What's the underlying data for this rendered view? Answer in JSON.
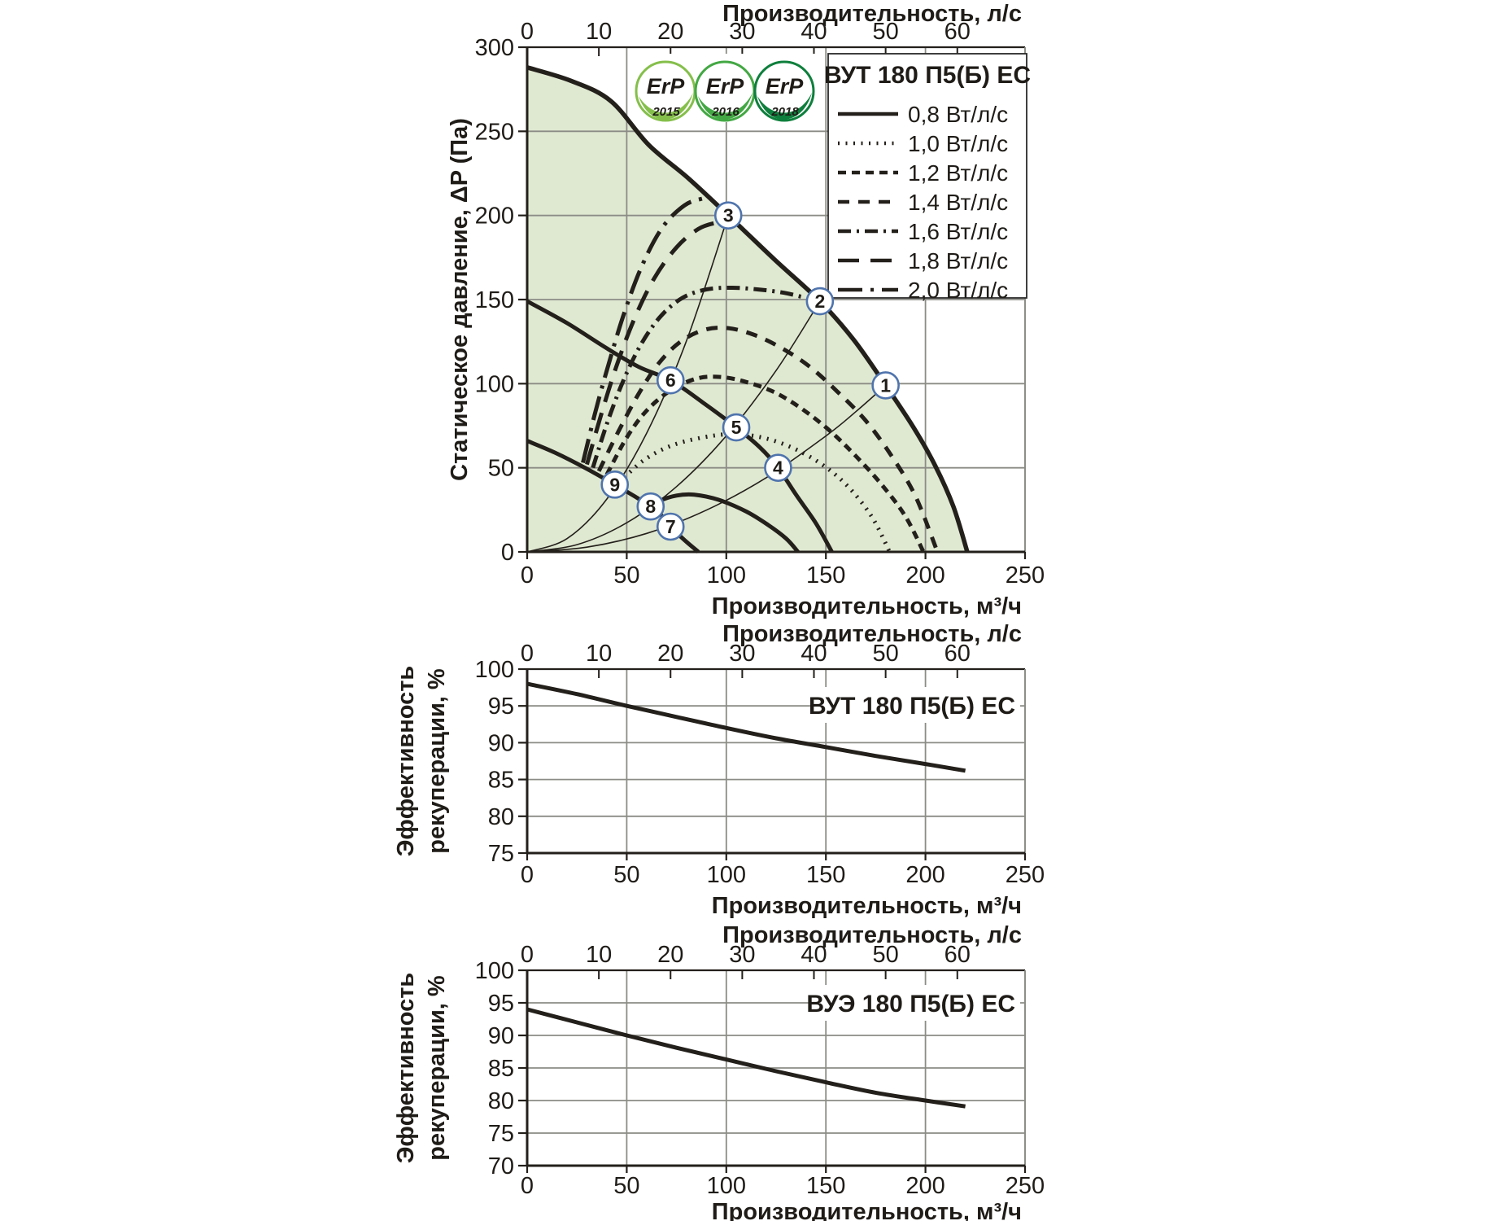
{
  "colors": {
    "ink": "#231f1a",
    "grid": "#8c8c86",
    "region": "#dfe8d1",
    "marker_ring": "#4f74ad",
    "text": "#1f1c18",
    "background": "#ffffff"
  },
  "chart_data": [
    {
      "type": "line",
      "name": "fan-performance-chart",
      "title": "ВУТ 180 П5(Б) ЕС",
      "x_axis_bottom": {
        "label": "Производительность, м³/ч",
        "ticks": [
          0,
          50,
          100,
          150,
          200,
          250
        ],
        "range": [
          0,
          250
        ]
      },
      "x_axis_top": {
        "label": "Производительность, л/с",
        "ticks": [
          0,
          10,
          20,
          30,
          40,
          50,
          60
        ],
        "range": [
          0,
          60
        ],
        "m3h_per_lps": 3.6
      },
      "y_axis": {
        "label_lines": [
          "Статическое давление, ΔP (Па)"
        ],
        "ticks": [
          0,
          50,
          100,
          150,
          200,
          250,
          300
        ],
        "range": [
          0,
          300
        ]
      },
      "grid": true,
      "region_fill": "#dfe8d1",
      "erp_badges": [
        {
          "text": "ErP",
          "year": "2015",
          "color": "#85bf4b"
        },
        {
          "text": "ErP",
          "year": "2016",
          "color": "#43a843"
        },
        {
          "text": "ErP",
          "year": "2018",
          "color": "#0e7f3c"
        }
      ],
      "legend": {
        "title": "ВУТ 180 П5(Б) ЕС",
        "position": "top-right",
        "items": [
          {
            "label": "0,8 Вт/л/с",
            "style": "solid"
          },
          {
            "label": "1,0 Вт/л/с",
            "style": "dotted"
          },
          {
            "label": "1,2 Вт/л/с",
            "style": "dash-fine"
          },
          {
            "label": "1,4 Вт/л/с",
            "style": "dash"
          },
          {
            "label": "1,6 Вт/л/с",
            "style": "dash-dot"
          },
          {
            "label": "1,8 Вт/л/с",
            "style": "long-dash"
          },
          {
            "label": "2,0 Вт/л/с",
            "style": "long-dash-dot"
          }
        ]
      },
      "series": [
        {
          "name": "fan-curve-max-speed",
          "role": "envelope",
          "style": "solid",
          "width": 5.5,
          "points": [
            [
              0,
              288
            ],
            [
              22,
              280
            ],
            [
              42,
              268
            ],
            [
              61,
              242
            ],
            [
              81,
              222
            ],
            [
              101,
              200
            ],
            [
              124,
              174
            ],
            [
              147,
              149
            ],
            [
              164,
              126
            ],
            [
              180,
              99
            ],
            [
              194,
              74
            ],
            [
              205,
              51
            ],
            [
              214,
              27
            ],
            [
              221,
              0
            ]
          ]
        },
        {
          "name": "fan-curve-mid-speed",
          "style": "solid",
          "width": 5,
          "points": [
            [
              0,
              149
            ],
            [
              20,
              136
            ],
            [
              40,
              121
            ],
            [
              56,
              110
            ],
            [
              72,
              102
            ],
            [
              88,
              89
            ],
            [
              105,
              74
            ],
            [
              117,
              62
            ],
            [
              126,
              50
            ],
            [
              135,
              34
            ],
            [
              145,
              17
            ],
            [
              153,
              0
            ]
          ]
        },
        {
          "name": "fan-curve-min-speed",
          "style": "solid",
          "width": 5,
          "points": [
            [
              0,
              66
            ],
            [
              14,
              59
            ],
            [
              29,
              50
            ],
            [
              44,
              40
            ],
            [
              54,
              33
            ],
            [
              62,
              27
            ],
            [
              68,
              21
            ],
            [
              72,
              15
            ],
            [
              79,
              7
            ],
            [
              86,
              0
            ]
          ]
        },
        {
          "name": "sfp-0,8-curve",
          "style": "solid",
          "width": 5,
          "points": [
            [
              57,
              23
            ],
            [
              66,
              30
            ],
            [
              75,
              33.5
            ],
            [
              84,
              34
            ],
            [
              96,
              31
            ],
            [
              110,
              24
            ],
            [
              121,
              16
            ],
            [
              130,
              8
            ],
            [
              136,
              0
            ]
          ]
        },
        {
          "name": "sfp-1,0-curve",
          "style": "dotted",
          "width": 5,
          "points": [
            [
              46,
              41
            ],
            [
              58,
              54
            ],
            [
              72,
              63
            ],
            [
              88,
              68
            ],
            [
              103,
              70
            ],
            [
              118,
              68
            ],
            [
              133,
              62
            ],
            [
              148,
              52
            ],
            [
              161,
              39
            ],
            [
              173,
              21
            ],
            [
              182,
              0
            ]
          ]
        },
        {
          "name": "sfp-1,2-curve",
          "style": "dash-fine",
          "width": 5,
          "points": [
            [
              40,
              46
            ],
            [
              50,
              68
            ],
            [
              60,
              84
            ],
            [
              72,
              96
            ],
            [
              85,
              103
            ],
            [
              97,
              104
            ],
            [
              110,
              101
            ],
            [
              124,
              95
            ],
            [
              138,
              85
            ],
            [
              152,
              72
            ],
            [
              165,
              57
            ],
            [
              178,
              40
            ],
            [
              190,
              21
            ],
            [
              199,
              0
            ]
          ]
        },
        {
          "name": "sfp-1,4-curve",
          "style": "dash",
          "width": 5,
          "points": [
            [
              36,
              48
            ],
            [
              46,
              72
            ],
            [
              56,
              94
            ],
            [
              66,
              112
            ],
            [
              77,
              125
            ],
            [
              89,
              132
            ],
            [
              101,
              133
            ],
            [
              114,
              129
            ],
            [
              128,
              121
            ],
            [
              142,
              110
            ],
            [
              156,
              95
            ],
            [
              170,
              78
            ],
            [
              183,
              57
            ],
            [
              195,
              33
            ],
            [
              206,
              0
            ]
          ]
        },
        {
          "name": "sfp-1,6-curve",
          "style": "dash-dot",
          "width": 5,
          "points": [
            [
              33,
              50
            ],
            [
              40,
              76
            ],
            [
              48,
              101
            ],
            [
              57,
              123
            ],
            [
              67,
              140
            ],
            [
              78,
              151
            ],
            [
              90,
              156
            ],
            [
              103,
              157
            ],
            [
              116,
              156
            ],
            [
              129,
              154
            ],
            [
              140,
              151
            ],
            [
              147,
              149
            ]
          ]
        },
        {
          "name": "sfp-1,8-curve",
          "style": "long-dash",
          "width": 5,
          "points": [
            [
              30,
              52
            ],
            [
              37,
              81
            ],
            [
              45,
              111
            ],
            [
              54,
              139
            ],
            [
              64,
              163
            ],
            [
              75,
              181
            ],
            [
              86,
              192
            ],
            [
              96,
              196
            ],
            [
              102,
              197
            ]
          ]
        },
        {
          "name": "sfp-2,0-curve",
          "style": "long-dash-dot",
          "width": 5,
          "points": [
            [
              28,
              53
            ],
            [
              34,
              82
            ],
            [
              41,
              112
            ],
            [
              49,
              143
            ],
            [
              58,
              171
            ],
            [
              68,
              193
            ],
            [
              79,
              206
            ],
            [
              88,
              210
            ],
            [
              92,
              210
            ]
          ]
        }
      ],
      "system_curves": [
        {
          "name": "system-curve-through-1-4-7",
          "points": [
            [
              0,
              0
            ],
            [
              30,
              2.8
            ],
            [
              60,
              11
            ],
            [
              90,
              24.8
            ],
            [
              120,
              44.1
            ],
            [
              150,
              68.9
            ],
            [
              165,
              83.3
            ],
            [
              180,
              99
            ]
          ]
        },
        {
          "name": "system-curve-through-2-5-8",
          "points": [
            [
              0,
              0
            ],
            [
              25,
              4.3
            ],
            [
              50,
              17.3
            ],
            [
              75,
              38.8
            ],
            [
              100,
              69
            ],
            [
              125,
              107.8
            ],
            [
              147,
              149
            ]
          ]
        },
        {
          "name": "system-curve-through-3-6-9",
          "points": [
            [
              0,
              0
            ],
            [
              20,
              7.9
            ],
            [
              40,
              31.4
            ],
            [
              60,
              70.6
            ],
            [
              80,
              125.4
            ],
            [
              101,
              200
            ]
          ]
        }
      ],
      "markers": [
        {
          "label": "1",
          "x": 180,
          "y": 99
        },
        {
          "label": "2",
          "x": 147,
          "y": 149
        },
        {
          "label": "3",
          "x": 101,
          "y": 200
        },
        {
          "label": "4",
          "x": 126,
          "y": 50
        },
        {
          "label": "5",
          "x": 105,
          "y": 74
        },
        {
          "label": "6",
          "x": 72,
          "y": 102
        },
        {
          "label": "7",
          "x": 72,
          "y": 15
        },
        {
          "label": "8",
          "x": 62,
          "y": 27
        },
        {
          "label": "9",
          "x": 44,
          "y": 40
        }
      ]
    },
    {
      "type": "line",
      "name": "heat-recovery-efficiency-chart-vut",
      "title": "ВУТ 180 П5(Б) ЕС",
      "x_axis_bottom": {
        "label": "Производительность, м³/ч",
        "ticks": [
          0,
          50,
          100,
          150,
          200,
          250
        ],
        "range": [
          0,
          250
        ]
      },
      "x_axis_top": {
        "label": "Производительность, л/с",
        "ticks": [
          0,
          10,
          20,
          30,
          40,
          50,
          60
        ],
        "range": [
          0,
          60
        ],
        "m3h_per_lps": 3.6
      },
      "y_axis": {
        "label_lines": [
          "Эффективность",
          "рекуперации, %"
        ],
        "ticks": [
          75,
          80,
          85,
          90,
          95,
          100
        ],
        "range": [
          75,
          100
        ]
      },
      "grid": true,
      "series": [
        {
          "name": "recovery-efficiency-curve",
          "style": "solid",
          "width": 5,
          "points": [
            [
              0,
              98
            ],
            [
              25,
              96.6
            ],
            [
              50,
              95
            ],
            [
              75,
              93.5
            ],
            [
              100,
              92
            ],
            [
              125,
              90.6
            ],
            [
              150,
              89.4
            ],
            [
              175,
              88.2
            ],
            [
              200,
              87.1
            ],
            [
              220,
              86.2
            ]
          ]
        }
      ]
    },
    {
      "type": "line",
      "name": "heat-recovery-efficiency-chart-vue",
      "title": "ВУЭ 180 П5(Б) ЕС",
      "x_axis_bottom": {
        "label": "Производительность, м³/ч",
        "ticks": [
          0,
          50,
          100,
          150,
          200,
          250
        ],
        "range": [
          0,
          250
        ]
      },
      "x_axis_top": {
        "label": "Производительность, л/с",
        "ticks": [
          0,
          10,
          20,
          30,
          40,
          50,
          60
        ],
        "range": [
          0,
          60
        ],
        "m3h_per_lps": 3.6
      },
      "y_axis": {
        "label_lines": [
          "Эффективность",
          "рекуперации, %"
        ],
        "ticks": [
          70,
          75,
          80,
          85,
          90,
          95,
          100
        ],
        "range": [
          70,
          100
        ]
      },
      "grid": true,
      "series": [
        {
          "name": "recovery-efficiency-curve",
          "style": "solid",
          "width": 5,
          "points": [
            [
              0,
              94
            ],
            [
              25,
              92
            ],
            [
              50,
              90
            ],
            [
              75,
              88.1
            ],
            [
              100,
              86.3
            ],
            [
              125,
              84.5
            ],
            [
              150,
              82.8
            ],
            [
              175,
              81.2
            ],
            [
              200,
              80
            ],
            [
              220,
              79.1
            ]
          ]
        }
      ]
    }
  ]
}
